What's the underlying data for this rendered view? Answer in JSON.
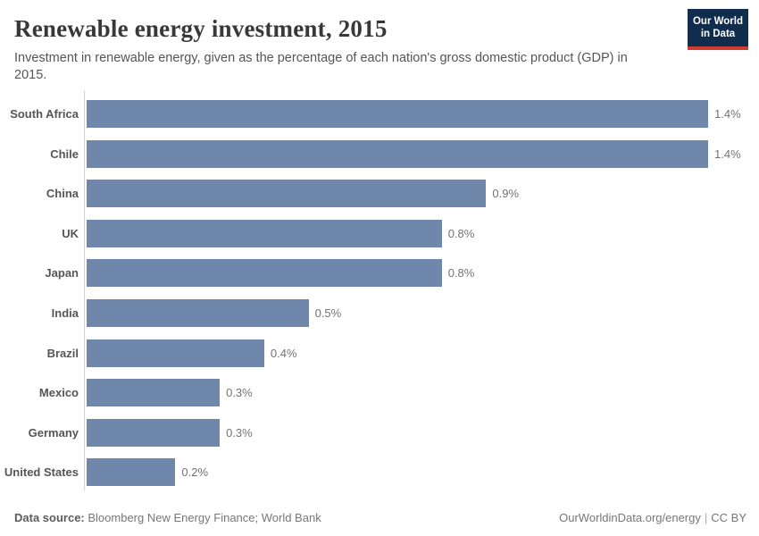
{
  "header": {
    "title": "Renewable energy investment, 2015",
    "subtitle": "Investment in renewable energy, given as the percentage of each nation's gross domestic product (GDP) in 2015.",
    "logo": {
      "line1": "Our World",
      "line2": "in Data",
      "bg_color": "#102d4e",
      "accent_color": "#d13d33"
    }
  },
  "chart_data": {
    "type": "bar",
    "orientation": "horizontal",
    "title": "Renewable energy investment, 2015",
    "xlabel": "",
    "ylabel": "",
    "unit": "% of GDP",
    "xlim": [
      0,
      1.4
    ],
    "grid": false,
    "legend": "none",
    "bar_color": "#6e87aa",
    "categories": [
      "South Africa",
      "Chile",
      "China",
      "UK",
      "Japan",
      "India",
      "Brazil",
      "Mexico",
      "Germany",
      "United States"
    ],
    "values": [
      1.4,
      1.4,
      0.9,
      0.8,
      0.8,
      0.5,
      0.4,
      0.3,
      0.3,
      0.2
    ],
    "value_labels": [
      "1.4%",
      "1.4%",
      "0.9%",
      "0.8%",
      "0.8%",
      "0.5%",
      "0.4%",
      "0.3%",
      "0.3%",
      "0.2%"
    ]
  },
  "footer": {
    "source_label": "Data source:",
    "source_text": " Bloomberg New Energy Finance; World Bank",
    "link": "OurWorldinData.org/energy",
    "separator": "|",
    "license": "CC BY"
  }
}
